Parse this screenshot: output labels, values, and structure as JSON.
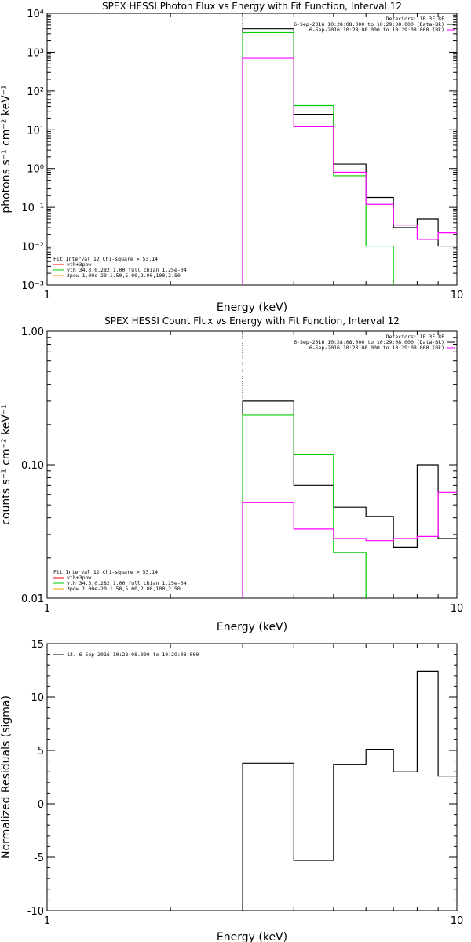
{
  "chart_data": [
    {
      "type": "line",
      "title": "SPEX HESSI Photon Flux vs Energy with Fit Function, Interval 12",
      "xlabel": "Energy (keV)",
      "ylabel": "photons s⁻¹ cm⁻² keV⁻¹",
      "xscale": "log",
      "yscale": "log",
      "xlim": [
        1,
        10
      ],
      "ylim": [
        0.001,
        10000
      ],
      "x_ticks": [
        "1",
        "10"
      ],
      "y_ticks": [
        "10⁻³",
        "10⁻²",
        "10⁻¹",
        "10⁰",
        "10¹",
        "10²",
        "10³",
        "10⁴"
      ],
      "y_tick_values": [
        0.001,
        0.01,
        0.1,
        1,
        10,
        100,
        1000,
        10000
      ],
      "vline_x": 3.0,
      "info_lines": [
        {
          "text": "Detectors: 1F 3F 8F",
          "color": "#000000"
        },
        {
          "text": "6-Sep-2016 10:28:08.000 to 10:29:08.000 (Data-Bk)",
          "color": "#000000"
        },
        {
          "text": "6-Sep-2016 10:28:08.000 to 10:29:08.000 (Bk)",
          "color": "#ff00ff"
        }
      ],
      "legend": [
        {
          "text": "Fit Interval 12   Chi-square = 53.14",
          "color": "#000000"
        },
        {
          "text": "vth+3pow",
          "color": "#ff0000"
        },
        {
          "text": "vth 34.3,0.282,1.00  full chian 1.25e-04",
          "color": "#00cc00"
        },
        {
          "text": "3pow 1.00e-20,1.50,5.00,2.00,100,2.50",
          "color": "#ff9900"
        }
      ],
      "series": [
        {
          "color": "#000000",
          "edges": [
            3.0,
            4.0,
            5.0,
            6.0,
            7.0,
            8.0,
            9.0,
            10.0
          ],
          "values": [
            4000,
            25,
            1.3,
            0.18,
            0.03,
            0.05,
            0.01
          ]
        },
        {
          "color": "#00cc00",
          "edges": [
            3.0,
            4.0,
            5.0,
            6.0,
            7.0
          ],
          "values": [
            3200,
            42,
            0.65,
            0.01
          ]
        },
        {
          "color": "#ff00ff",
          "edges": [
            3.0,
            4.0,
            5.0,
            6.0,
            7.0,
            8.0,
            9.0,
            10.0
          ],
          "values": [
            700,
            12,
            0.8,
            0.12,
            0.035,
            0.015,
            0.022
          ]
        }
      ]
    },
    {
      "type": "line",
      "title": "SPEX HESSI Count Flux vs Energy with Fit Function, Interval 12",
      "xlabel": "Energy (keV)",
      "ylabel": "counts s⁻¹ cm⁻² keV⁻¹",
      "xscale": "log",
      "yscale": "log",
      "xlim": [
        1,
        10
      ],
      "ylim": [
        0.01,
        1.0
      ],
      "x_ticks": [
        "1",
        "10"
      ],
      "y_ticks": [
        "0.01",
        "0.10",
        "1.00"
      ],
      "y_tick_values": [
        0.01,
        0.1,
        1.0
      ],
      "vline_x": 3.0,
      "info_lines": [
        {
          "text": "Detectors: 1F 3F 8F",
          "color": "#000000"
        },
        {
          "text": "6-Sep-2016 10:28:08.000 to 10:29:08.000 (Data-Bk)",
          "color": "#000000"
        },
        {
          "text": "6-Sep-2016 10:28:08.000 to 10:29:08.000 (Bk)",
          "color": "#ff00ff"
        }
      ],
      "legend": [
        {
          "text": "Fit Interval 12   Chi-square = 53.14",
          "color": "#000000"
        },
        {
          "text": "vth+3pow",
          "color": "#ff0000"
        },
        {
          "text": "vth 34.3,0.282,1.00  full chian 1.25e-04",
          "color": "#00cc00"
        },
        {
          "text": "3pow 1.00e-20,1.50,5.00,2.00,100,2.50",
          "color": "#ff9900"
        }
      ],
      "series": [
        {
          "color": "#000000",
          "edges": [
            3.0,
            4.0,
            5.0,
            6.0,
            7.0,
            8.0,
            9.0,
            10.0
          ],
          "values": [
            0.3,
            0.07,
            0.048,
            0.041,
            0.024,
            0.1,
            0.028
          ]
        },
        {
          "color": "#00cc00",
          "edges": [
            3.0,
            4.0,
            5.0,
            6.0
          ],
          "values": [
            0.235,
            0.12,
            0.022
          ]
        },
        {
          "color": "#ff00ff",
          "edges": [
            3.0,
            4.0,
            5.0,
            6.0,
            7.0,
            8.0,
            9.0,
            10.0
          ],
          "values": [
            0.052,
            0.033,
            0.028,
            0.027,
            0.028,
            0.029,
            0.062
          ]
        }
      ]
    },
    {
      "type": "line",
      "title": "",
      "xlabel": "Energy (keV)",
      "ylabel": "Normalized Residuals (sigma)",
      "xscale": "log",
      "yscale": "linear",
      "xlim": [
        1,
        10
      ],
      "ylim": [
        -10,
        15
      ],
      "x_ticks": [
        "1",
        "10"
      ],
      "y_ticks": [
        "-10",
        "-5",
        "0",
        "5",
        "10",
        "15"
      ],
      "y_tick_values": [
        -10,
        -5,
        0,
        5,
        10,
        15
      ],
      "legend": [
        {
          "text": "12. 6-Sep-2016 10:28:08.000 to 10:29:08.000",
          "color": "#000000"
        }
      ],
      "series": [
        {
          "color": "#000000",
          "edges": [
            3.0,
            4.0,
            5.0,
            6.0,
            7.0,
            8.0,
            9.0,
            10.0
          ],
          "values": [
            3.8,
            -5.3,
            3.7,
            5.1,
            3.0,
            12.4,
            2.6
          ]
        }
      ]
    }
  ]
}
